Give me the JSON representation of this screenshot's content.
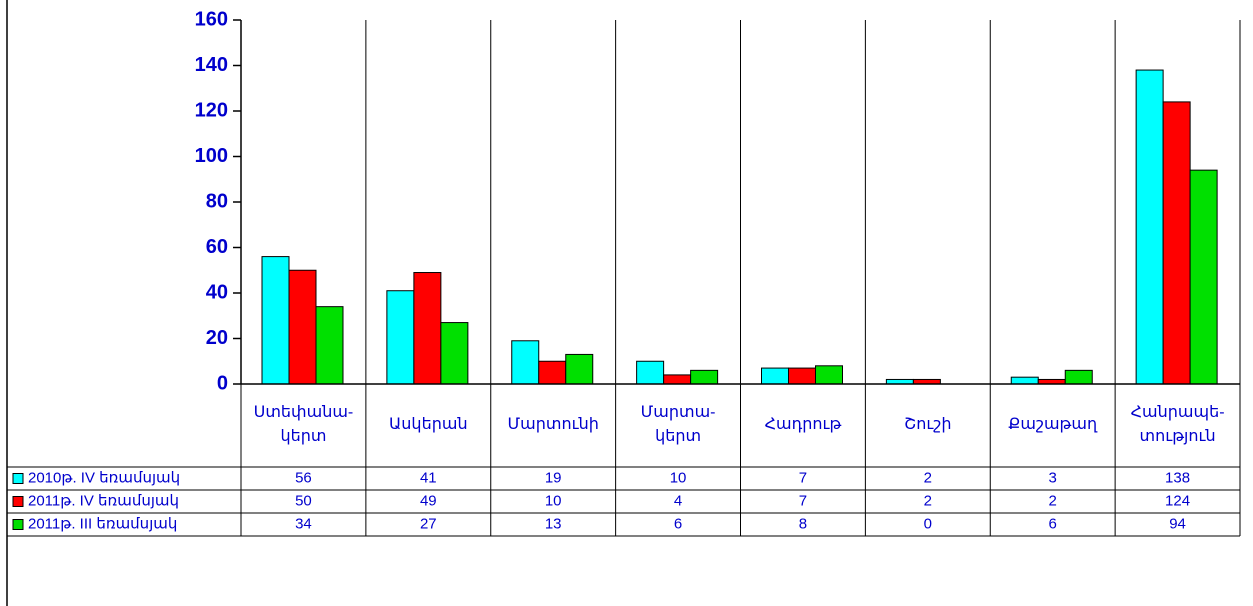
{
  "chart_data": {
    "type": "bar",
    "categories": [
      "Ստեփանա-կերտ",
      "Ասկերան",
      "Մարտունի",
      "Մարտա-կերտ",
      "Հադրութ",
      "Շուշի",
      "Քաշաթաղ",
      "Հանրապե-տություն"
    ],
    "series": [
      {
        "name": "2010թ. IV եռամսյակ",
        "color": "#00ffff",
        "values": [
          56,
          41,
          19,
          10,
          7,
          2,
          3,
          138
        ]
      },
      {
        "name": "2011թ. IV եռամսյակ",
        "color": "#ff0000",
        "values": [
          50,
          49,
          10,
          4,
          7,
          2,
          2,
          124
        ]
      },
      {
        "name": "2011թ. III եռամսյակ",
        "color": "#00e000",
        "values": [
          34,
          27,
          13,
          6,
          8,
          0,
          6,
          94
        ]
      }
    ],
    "ylim": [
      0,
      160
    ],
    "yticks": [
      0,
      20,
      40,
      60,
      80,
      100,
      120,
      140,
      160
    ]
  }
}
